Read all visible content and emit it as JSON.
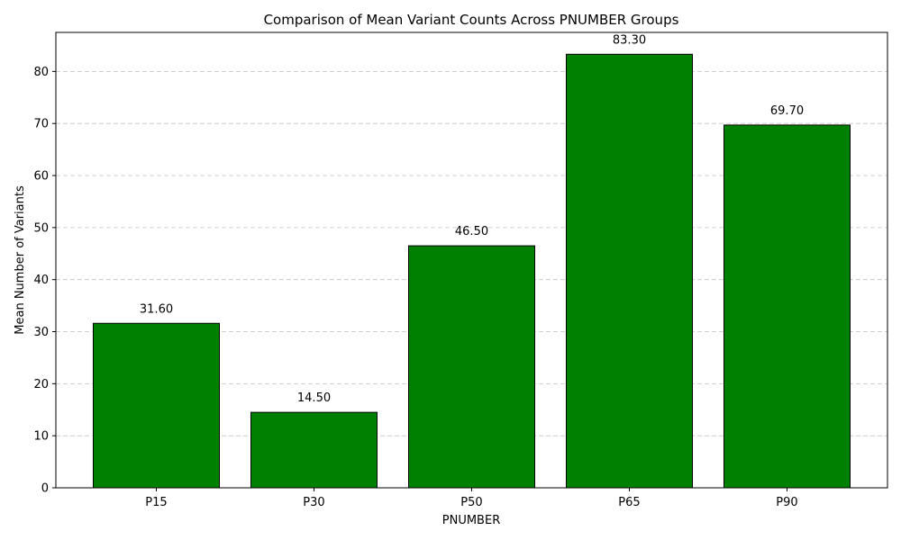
{
  "chart_data": {
    "type": "bar",
    "title": "Comparison of Mean Variant Counts Across PNUMBER Groups",
    "xlabel": "PNUMBER",
    "ylabel": "Mean Number of Variants",
    "categories": [
      "P15",
      "P30",
      "P50",
      "P65",
      "P90"
    ],
    "values": [
      31.6,
      14.5,
      46.5,
      83.3,
      69.7
    ],
    "data_labels": [
      "31.60",
      "14.50",
      "46.50",
      "83.30",
      "69.70"
    ],
    "ylim": [
      0,
      87.5
    ],
    "yticks": [
      0,
      10,
      20,
      30,
      40,
      50,
      60,
      70,
      80
    ],
    "grid": true,
    "bar_color": "#008000",
    "edge_color": "#000000"
  }
}
